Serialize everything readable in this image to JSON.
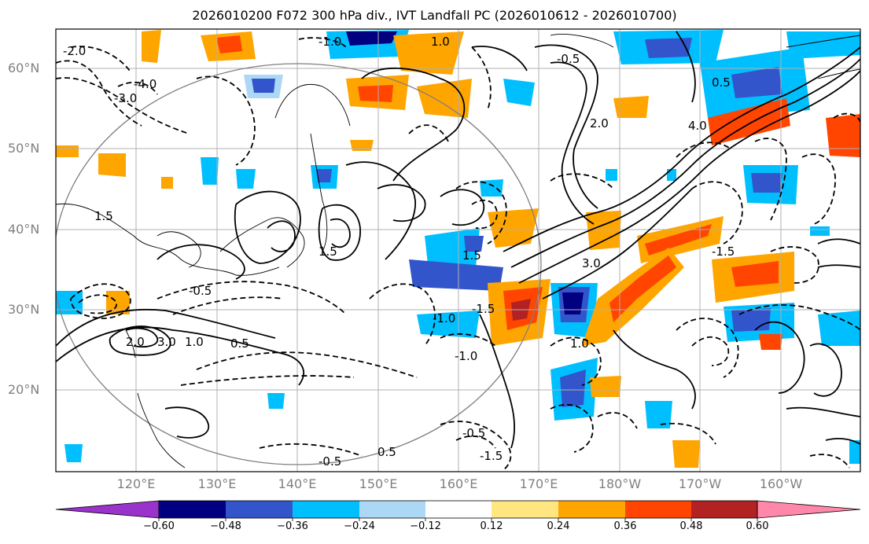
{
  "title": "2026010200 F072 300 hPa div., IVT Landfall PC (2026010612 - 2026010700)",
  "lat_labels": [
    "60°N",
    "50°N",
    "40°N",
    "30°N",
    "20°N"
  ],
  "lon_labels": [
    "120°E",
    "130°E",
    "140°E",
    "150°E",
    "160°E",
    "170°E",
    "180°W",
    "170°W",
    "160°W"
  ],
  "colorbar": {
    "ticks": [
      "−0.60",
      "−0.48",
      "−0.36",
      "−0.24",
      "−0.12",
      "0.12",
      "0.24",
      "0.36",
      "0.48",
      "0.60"
    ],
    "colors": [
      "#9933cc",
      "#000080",
      "#3355cc",
      "#00bfff",
      "#add8f5",
      "#ffffff",
      "#ffe680",
      "#ffa500",
      "#ff4500",
      "#b22222",
      "#ff88aa"
    ]
  },
  "contour_labels": [
    "-1.0",
    "1.0",
    "-0.5",
    "0.5",
    "-2.0",
    "-4.0",
    "-3.0",
    "1.5",
    "2.0",
    "3.0",
    "-1.5",
    "4.0",
    "-0.5",
    "1.0",
    "-1.0",
    "2.0",
    "-1.5",
    "0.5",
    "1.5",
    "3.0",
    "-0.5",
    "1.0",
    "-1.5",
    "-0.5",
    "0.5",
    "-1.0",
    "1.5"
  ]
}
